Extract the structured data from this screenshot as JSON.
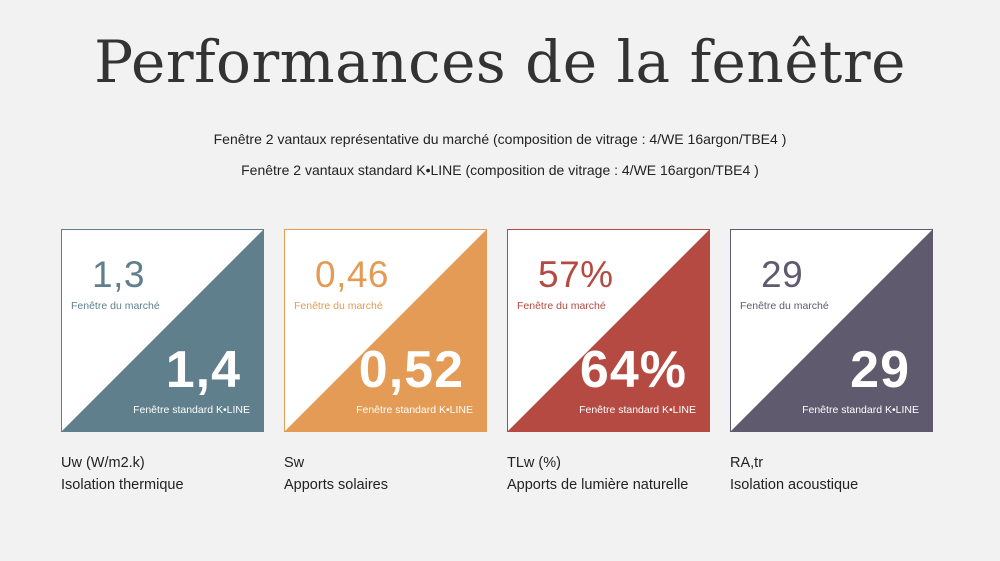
{
  "title": "Performances de la fenêtre",
  "subtitle_market": "Fenêtre 2 vantaux représentative du marché (composition de vitrage : 4/WE 16argon/TBE4 )",
  "subtitle_kline": "Fenêtre 2 vantaux standard K•LINE (composition de vitrage : 4/WE 16argon/TBE4 )",
  "cards": [
    {
      "market_value": "1,3",
      "market_label": "Fenêtre du marché",
      "kline_value": "1,4",
      "kline_label": "Fenêtre standard K•LINE",
      "color": "#5e7f8b",
      "metric": "Uw (W/m2.k)",
      "description": "Isolation thermique"
    },
    {
      "market_value": "0,46",
      "market_label": "Fenêtre du marché",
      "kline_value": "0,52",
      "kline_label": "Fenêtre standard K•LINE",
      "color": "#e39b55",
      "metric": "Sw",
      "description": "Apports solaires"
    },
    {
      "market_value": "57%",
      "market_label": "Fenêtre du marché",
      "kline_value": "64%",
      "kline_label": "Fenêtre standard K•LINE",
      "color": "#b44a41",
      "metric": "TLw (%)",
      "description": "Apports de lumière naturelle"
    },
    {
      "market_value": "29",
      "market_label": "Fenêtre du marché",
      "kline_value": "29",
      "kline_label": "Fenêtre standard K•LINE",
      "color": "#5f5a6e",
      "metric": "RA,tr",
      "description": "Isolation acoustique"
    }
  ]
}
